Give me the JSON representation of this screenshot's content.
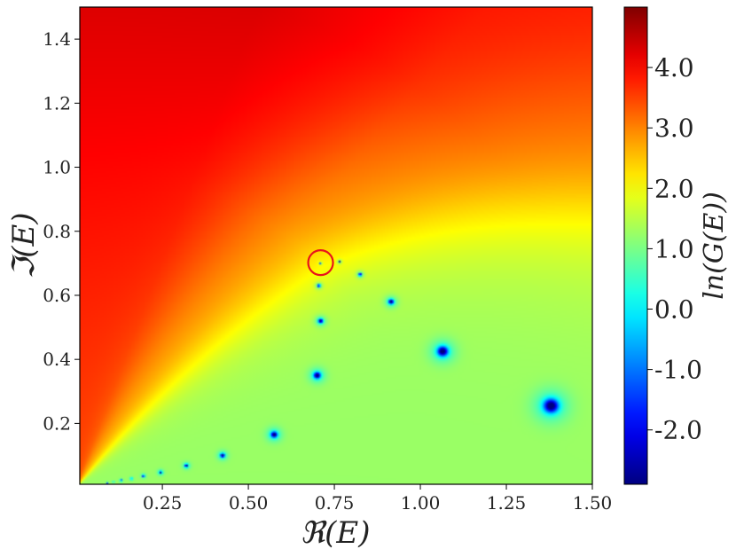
{
  "chart_data": {
    "type": "heatmap",
    "title": "",
    "xlabel": "ℜ(E)",
    "ylabel": "ℑ(E)",
    "colorbar_label": "ln(G(E))",
    "xlim": [
      0.01,
      1.5
    ],
    "ylim": [
      0.01,
      1.5
    ],
    "x_ticks": [
      {
        "value": 0.25,
        "label": "0.25"
      },
      {
        "value": 0.5,
        "label": "0.50"
      },
      {
        "value": 0.75,
        "label": "0.75"
      },
      {
        "value": 1.0,
        "label": "1.00"
      },
      {
        "value": 1.25,
        "label": "1.25"
      },
      {
        "value": 1.5,
        "label": "1.50"
      }
    ],
    "y_ticks": [
      {
        "value": 0.2,
        "label": "0.2"
      },
      {
        "value": 0.4,
        "label": "0.4"
      },
      {
        "value": 0.6,
        "label": "0.6"
      },
      {
        "value": 0.8,
        "label": "0.8"
      },
      {
        "value": 1.0,
        "label": "1.0"
      },
      {
        "value": 1.2,
        "label": "1.2"
      },
      {
        "value": 1.4,
        "label": "1.4"
      }
    ],
    "colorbar": {
      "min": -2.9,
      "max": 5.0,
      "colormap": "jet",
      "ticks": [
        {
          "value": -2.0,
          "label": "-2.0"
        },
        {
          "value": -1.0,
          "label": "-1.0"
        },
        {
          "value": 0.0,
          "label": "0.0"
        },
        {
          "value": 1.0,
          "label": "1.0"
        },
        {
          "value": 2.0,
          "label": "2.0"
        },
        {
          "value": 3.0,
          "label": "3.0"
        },
        {
          "value": 4.0,
          "label": "4.0"
        }
      ]
    },
    "field": {
      "high_value": 5.0,
      "plateau_value": 1.25,
      "outer_shell_value": 2.1
    },
    "zeros": [
      {
        "x": 0.71,
        "y": 0.7,
        "size": 0.003
      },
      {
        "x": 0.765,
        "y": 0.705,
        "size": 0.004
      },
      {
        "x": 0.825,
        "y": 0.665,
        "size": 0.006
      },
      {
        "x": 0.705,
        "y": 0.63,
        "size": 0.006
      },
      {
        "x": 0.915,
        "y": 0.58,
        "size": 0.01
      },
      {
        "x": 0.71,
        "y": 0.52,
        "size": 0.009
      },
      {
        "x": 1.065,
        "y": 0.425,
        "size": 0.02
      },
      {
        "x": 0.7,
        "y": 0.35,
        "size": 0.013
      },
      {
        "x": 1.38,
        "y": 0.255,
        "size": 0.028
      },
      {
        "x": 0.575,
        "y": 0.165,
        "size": 0.012
      },
      {
        "x": 0.425,
        "y": 0.1,
        "size": 0.008
      },
      {
        "x": 0.32,
        "y": 0.068,
        "size": 0.006
      },
      {
        "x": 0.245,
        "y": 0.047,
        "size": 0.005
      },
      {
        "x": 0.195,
        "y": 0.036,
        "size": 0.004
      },
      {
        "x": 0.16,
        "y": 0.027,
        "size": 0.003
      },
      {
        "x": 0.13,
        "y": 0.022,
        "size": 0.003
      },
      {
        "x": 0.108,
        "y": 0.017,
        "size": 0.002
      },
      {
        "x": 0.09,
        "y": 0.014,
        "size": 0.002
      }
    ],
    "annotation": {
      "type": "circle",
      "x": 0.71,
      "y": 0.702,
      "color": "#e8141b"
    }
  }
}
